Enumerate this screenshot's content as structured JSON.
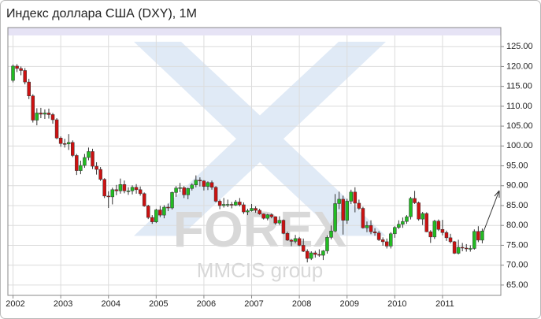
{
  "chart_data": {
    "type": "candlestick",
    "title": "Индекс доллара США (DXY), 1M",
    "annotations": [
      "FOREX",
      "MMCIS group"
    ],
    "categories": [
      "2002",
      null,
      null,
      null,
      null,
      null,
      null,
      null,
      null,
      null,
      null,
      null,
      "2003",
      null,
      null,
      null,
      null,
      null,
      null,
      null,
      null,
      null,
      null,
      null,
      "2004",
      null,
      null,
      null,
      null,
      null,
      null,
      null,
      null,
      null,
      null,
      null,
      "2005",
      null,
      null,
      null,
      null,
      null,
      null,
      null,
      null,
      null,
      null,
      null,
      "2006",
      null,
      null,
      null,
      null,
      null,
      null,
      null,
      null,
      null,
      null,
      null,
      "2007",
      null,
      null,
      null,
      null,
      null,
      null,
      null,
      null,
      null,
      null,
      null,
      "2008",
      null,
      null,
      null,
      null,
      null,
      null,
      null,
      null,
      null,
      null,
      null,
      "2009",
      null,
      null,
      null,
      null,
      null,
      null,
      null,
      null,
      null,
      null,
      null,
      "2010",
      null,
      null,
      null,
      null,
      null,
      null,
      null,
      null,
      null,
      null,
      null,
      "2011",
      null,
      null,
      null,
      null,
      null,
      null,
      null,
      null,
      null,
      null
    ],
    "open": [
      116.5,
      120.1,
      119.5,
      119.0,
      116.1,
      112.6,
      106.5,
      108.3,
      108.0,
      108.3,
      107.9,
      106.6,
      102.0,
      100.6,
      100.5,
      100.9,
      97.6,
      93.8,
      95.1,
      97.1,
      98.6,
      94.9,
      94.1,
      91.6,
      87.4,
      87.2,
      89.0,
      88.7,
      90.3,
      88.7,
      88.7,
      89.6,
      89.0,
      88.0,
      84.9,
      82.0,
      80.9,
      83.9,
      82.6,
      84.6,
      84.4,
      88.3,
      89.4,
      89.5,
      87.7,
      89.3,
      90.2,
      91.4,
      91.2,
      89.8,
      90.8,
      89.6,
      86.1,
      85.0,
      85.3,
      85.3,
      85.1,
      85.9,
      85.2,
      83.4,
      83.7,
      84.3,
      83.8,
      82.9,
      81.8,
      82.7,
      82.2,
      80.6,
      81.3,
      78.0,
      76.3,
      76.0,
      76.7,
      75.0,
      73.5,
      71.7,
      73.1,
      72.7,
      72.5,
      73.6,
      77.0,
      78.6,
      85.5,
      86.6,
      81.3,
      86.1,
      88.4,
      85.6,
      84.3,
      79.4,
      80.0,
      78.4,
      78.1,
      76.4,
      75.9,
      74.8,
      77.9,
      79.5,
      80.3,
      81.0,
      82.2,
      86.8,
      85.7,
      81.6,
      83.0,
      78.4,
      77.1,
      81.1,
      79.0,
      78.2,
      76.9,
      75.9,
      73.0,
      74.5,
      74.3,
      74.2,
      74.2,
      78.5,
      76.3
    ],
    "high": [
      120.5,
      120.6,
      120.0,
      119.6,
      116.9,
      113.0,
      109.5,
      109.6,
      109.2,
      109.4,
      108.3,
      107.0,
      102.4,
      101.8,
      103.0,
      101.4,
      98.0,
      96.3,
      98.0,
      99.6,
      99.3,
      95.9,
      94.7,
      91.9,
      88.6,
      89.5,
      90.2,
      91.8,
      91.3,
      89.6,
      90.1,
      90.4,
      89.8,
      88.3,
      85.2,
      82.6,
      84.2,
      84.9,
      85.1,
      85.5,
      88.5,
      89.9,
      90.7,
      89.9,
      89.5,
      90.6,
      92.6,
      92.1,
      91.4,
      91.1,
      91.3,
      89.9,
      86.5,
      86.9,
      86.5,
      85.9,
      86.4,
      86.9,
      85.8,
      84.2,
      85.4,
      84.8,
      84.2,
      83.0,
      82.9,
      83.0,
      82.3,
      82.3,
      81.5,
      78.4,
      76.6,
      77.6,
      77.1,
      76.7,
      74.0,
      73.5,
      73.6,
      74.0,
      73.8,
      77.5,
      80.0,
      87.9,
      88.5,
      87.5,
      86.7,
      89.0,
      89.6,
      86.5,
      84.7,
      81.0,
      81.3,
      79.3,
      78.6,
      77.0,
      76.7,
      78.3,
      79.8,
      81.3,
      82.0,
      82.6,
      87.2,
      88.7,
      86.0,
      83.4,
      83.3,
      78.8,
      81.4,
      81.5,
      81.4,
      78.7,
      77.9,
      76.1,
      76.4,
      75.6,
      75.3,
      75.0,
      79.0,
      79.8,
      79.2
    ],
    "low": [
      116.0,
      118.6,
      117.8,
      115.5,
      111.8,
      105.9,
      105.2,
      107.0,
      106.8,
      106.9,
      105.6,
      101.7,
      99.8,
      99.6,
      99.0,
      97.2,
      92.7,
      92.9,
      94.5,
      96.4,
      94.2,
      92.8,
      91.2,
      86.9,
      84.4,
      85.3,
      87.6,
      88.0,
      88.1,
      87.7,
      87.8,
      88.0,
      87.5,
      84.7,
      81.6,
      80.4,
      80.6,
      82.1,
      81.8,
      83.6,
      84.0,
      87.2,
      88.4,
      86.9,
      86.6,
      88.8,
      89.6,
      89.8,
      88.8,
      88.9,
      89.0,
      85.8,
      84.1,
      84.5,
      84.6,
      84.3,
      84.9,
      84.8,
      82.9,
      82.6,
      83.5,
      83.2,
      82.7,
      81.5,
      81.3,
      81.8,
      80.2,
      80.1,
      77.8,
      76.1,
      74.8,
      75.5,
      74.8,
      73.3,
      70.7,
      71.3,
      71.9,
      72.1,
      71.3,
      72.9,
      76.5,
      78.3,
      84.1,
      77.7,
      80.4,
      85.4,
      83.3,
      83.9,
      79.2,
      78.3,
      77.8,
      77.4,
      76.1,
      74.9,
      74.2,
      74.2,
      76.9,
      79.1,
      79.4,
      80.4,
      81.5,
      85.4,
      81.2,
      80.1,
      78.3,
      75.6,
      76.6,
      78.6,
      77.5,
      76.1,
      75.5,
      72.8,
      72.7,
      73.5,
      73.4,
      73.4,
      73.9,
      75.8,
      75.5
    ],
    "close": [
      120.1,
      119.5,
      119.0,
      116.1,
      112.6,
      106.5,
      108.3,
      108.0,
      108.3,
      107.9,
      106.6,
      102.0,
      100.6,
      100.5,
      100.9,
      97.6,
      93.8,
      95.1,
      97.1,
      98.6,
      94.9,
      94.1,
      91.6,
      87.4,
      87.2,
      89.0,
      88.7,
      90.3,
      88.7,
      88.7,
      89.6,
      89.0,
      88.0,
      84.9,
      82.0,
      80.9,
      83.9,
      82.6,
      84.6,
      84.4,
      88.3,
      89.4,
      89.5,
      87.7,
      89.3,
      90.2,
      91.4,
      91.2,
      89.8,
      90.8,
      89.6,
      86.1,
      85.0,
      85.3,
      85.3,
      85.1,
      85.9,
      85.2,
      83.4,
      83.7,
      84.3,
      83.8,
      82.9,
      81.8,
      82.7,
      82.2,
      80.6,
      81.3,
      78.0,
      76.3,
      76.0,
      76.7,
      75.0,
      73.5,
      71.7,
      73.1,
      72.7,
      72.5,
      73.6,
      77.0,
      78.6,
      85.5,
      86.6,
      81.3,
      86.1,
      88.4,
      85.6,
      84.3,
      79.4,
      80.0,
      78.4,
      78.1,
      76.4,
      75.9,
      74.8,
      77.9,
      79.5,
      80.3,
      81.0,
      82.2,
      86.8,
      85.7,
      81.6,
      83.0,
      78.4,
      77.1,
      81.1,
      79.0,
      78.2,
      76.9,
      75.9,
      73.0,
      74.5,
      74.3,
      74.2,
      74.2,
      78.5,
      76.3,
      78.6
    ],
    "up_color": "#22bb22",
    "down_color": "#cc1111",
    "ylim": [
      62.4,
      129.8
    ],
    "yticks": [
      {
        "value": 65,
        "label": "65.00"
      },
      {
        "value": 70,
        "label": "70.00"
      },
      {
        "value": 75,
        "label": "75.00"
      },
      {
        "value": 80,
        "label": "80.00"
      },
      {
        "value": 85,
        "label": "85.00"
      },
      {
        "value": 90,
        "label": "90.00"
      },
      {
        "value": 95,
        "label": "95.00"
      },
      {
        "value": 100,
        "label": "100.00"
      },
      {
        "value": 105,
        "label": "105.00"
      },
      {
        "value": 110,
        "label": "110.00"
      },
      {
        "value": 115,
        "label": "115.00"
      },
      {
        "value": 120,
        "label": "120.00"
      },
      {
        "value": 125,
        "label": "125.00"
      }
    ],
    "grid": true
  }
}
